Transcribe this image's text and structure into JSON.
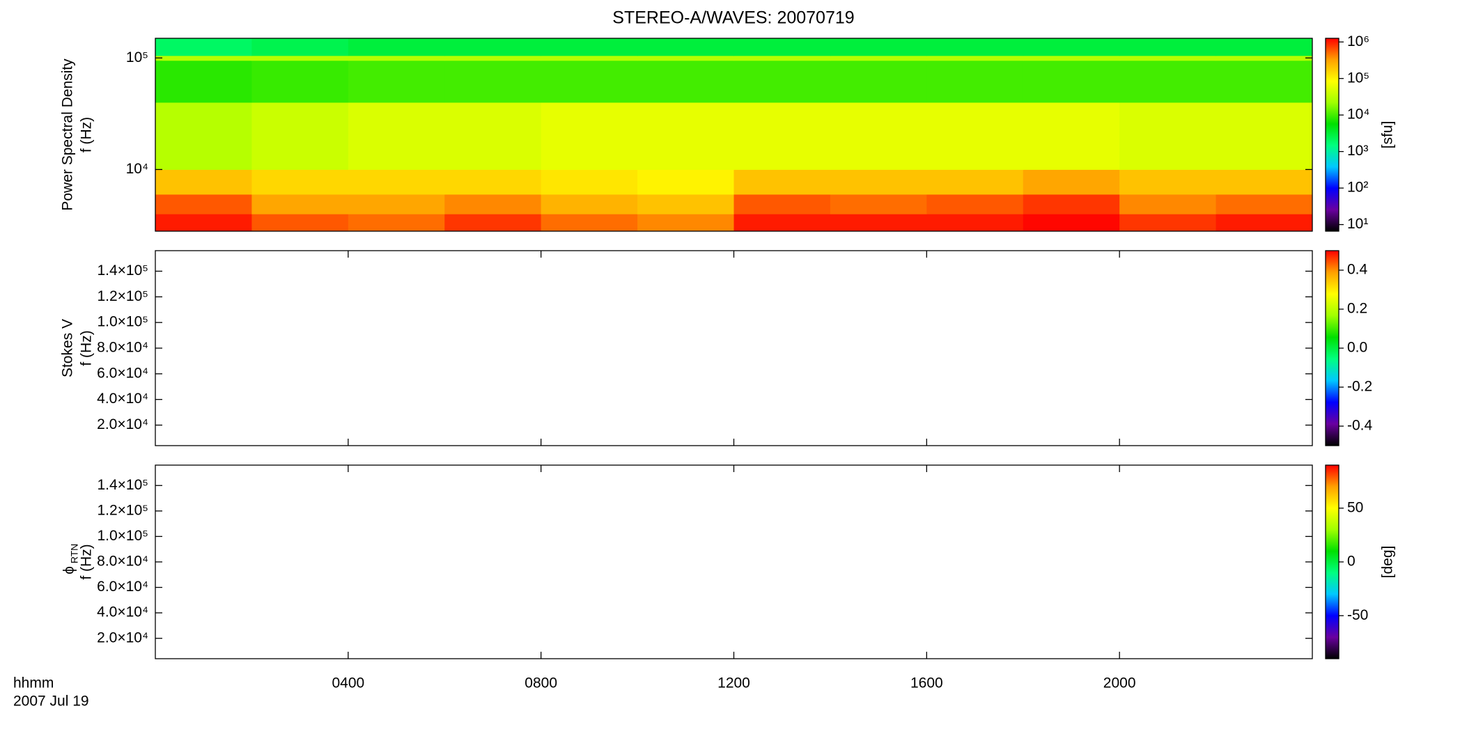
{
  "title": "STEREO-A/WAVES: 20070719",
  "time_axis": {
    "label_lines": [
      "hhmm",
      "2007 Jul 19"
    ],
    "xlim": [
      0,
      24
    ],
    "xticks": [
      {
        "value": 4,
        "label": "0400"
      },
      {
        "value": 8,
        "label": "0800"
      },
      {
        "value": 12,
        "label": "1200"
      },
      {
        "value": 16,
        "label": "1600"
      },
      {
        "value": 20,
        "label": "2000"
      }
    ]
  },
  "chart_data": [
    {
      "type": "spectrogram",
      "ylabel_lines": [
        "Power Spectral Density",
        "f (Hz)"
      ],
      "log_y": true,
      "ylim": [
        2800,
        150000
      ],
      "yticks": [
        {
          "value": 10000,
          "label": "10⁴"
        },
        {
          "value": 100000,
          "label": "10⁵"
        }
      ],
      "xbins": [
        0,
        2,
        4,
        6,
        8,
        10,
        12,
        14,
        16,
        18,
        20,
        22,
        24
      ],
      "ybins": [
        2800,
        4000,
        6000,
        10000,
        40000,
        95000,
        105000,
        150000
      ],
      "values": [
        [
          1000000,
          600000,
          500000,
          800000,
          500000,
          400000,
          1000000,
          1000000,
          1000000,
          1200000,
          800000,
          1000000
        ],
        [
          600000,
          300000,
          300000,
          400000,
          250000,
          200000,
          600000,
          500000,
          600000,
          800000,
          400000,
          500000
        ],
        [
          200000,
          150000,
          150000,
          150000,
          120000,
          100000,
          200000,
          200000,
          200000,
          300000,
          200000,
          200000
        ],
        [
          30000,
          40000,
          50000,
          50000,
          60000,
          60000,
          60000,
          60000,
          60000,
          60000,
          50000,
          50000
        ],
        [
          8000,
          9000,
          10000,
          10000,
          10000,
          10000,
          10000,
          10000,
          10000,
          10000,
          10000,
          10000
        ],
        [
          30000,
          30000,
          30000,
          30000,
          30000,
          30000,
          30000,
          30000,
          30000,
          30000,
          30000,
          30000
        ],
        [
          2000,
          2500,
          3000,
          3000,
          3000,
          3000,
          3000,
          3000,
          3000,
          3000,
          3000,
          3000
        ]
      ],
      "colorbar": {
        "log": true,
        "zlim": [
          6.6,
          1260000
        ],
        "zlabel": "[sfu]",
        "zticks": [
          {
            "value": 10,
            "label": "10¹"
          },
          {
            "value": 100,
            "label": "10²"
          },
          {
            "value": 1000,
            "label": "10³"
          },
          {
            "value": 10000,
            "label": "10⁴"
          },
          {
            "value": 100000,
            "label": "10⁵"
          },
          {
            "value": 1000000,
            "label": "10⁶"
          }
        ],
        "colors": [
          "#000000",
          "#6a00a0",
          "#0000ff",
          "#00c8ff",
          "#00ff80",
          "#00e000",
          "#a0ff00",
          "#ffff00",
          "#ffa000",
          "#ff0000"
        ]
      }
    },
    {
      "type": "spectrogram",
      "ylabel_lines": [
        "Stokes V",
        "f (Hz)"
      ],
      "log_y": false,
      "ylim": [
        4000,
        156000
      ],
      "yticks": [
        {
          "value": 20000,
          "label": "2.0×10⁴"
        },
        {
          "value": 40000,
          "label": "4.0×10⁴"
        },
        {
          "value": 60000,
          "label": "6.0×10⁴"
        },
        {
          "value": 80000,
          "label": "8.0×10⁴"
        },
        {
          "value": 100000,
          "label": "1.0×10⁵"
        },
        {
          "value": 120000,
          "label": "1.2×10⁵"
        },
        {
          "value": 140000,
          "label": "1.4×10⁵"
        }
      ],
      "colorbar": {
        "log": false,
        "zlim": [
          -0.5,
          0.5
        ],
        "zticks": [
          -0.4,
          -0.2,
          {
            "value": 0,
            "label": "0.0"
          },
          0.2,
          0.4
        ],
        "colors": [
          "#000000",
          "#6a00a0",
          "#0000ff",
          "#00c8ff",
          "#00ff80",
          "#00e000",
          "#a0ff00",
          "#ffff00",
          "#ffa000",
          "#ff0000"
        ]
      }
    },
    {
      "type": "spectrogram",
      "ylabel_symbol": {
        "symbol": "ϕ",
        "subscript": "RTN"
      },
      "ylabel_lines": [
        "f (Hz)"
      ],
      "log_y": false,
      "ylim": [
        4000,
        156000
      ],
      "yticks": [
        {
          "value": 20000,
          "label": "2.0×10⁴"
        },
        {
          "value": 40000,
          "label": "4.0×10⁴"
        },
        {
          "value": 60000,
          "label": "6.0×10⁴"
        },
        {
          "value": 80000,
          "label": "8.0×10⁴"
        },
        {
          "value": 100000,
          "label": "1.0×10⁵"
        },
        {
          "value": 120000,
          "label": "1.2×10⁵"
        },
        {
          "value": 140000,
          "label": "1.4×10⁵"
        }
      ],
      "colorbar": {
        "log": false,
        "zlim": [
          -90,
          90
        ],
        "zlabel": "[deg]",
        "zticks": [
          -50,
          0,
          50
        ],
        "colors": [
          "#000000",
          "#6a00a0",
          "#0000ff",
          "#00c8ff",
          "#00ff80",
          "#00e000",
          "#a0ff00",
          "#ffff00",
          "#ffa000",
          "#ff0000"
        ]
      }
    }
  ]
}
